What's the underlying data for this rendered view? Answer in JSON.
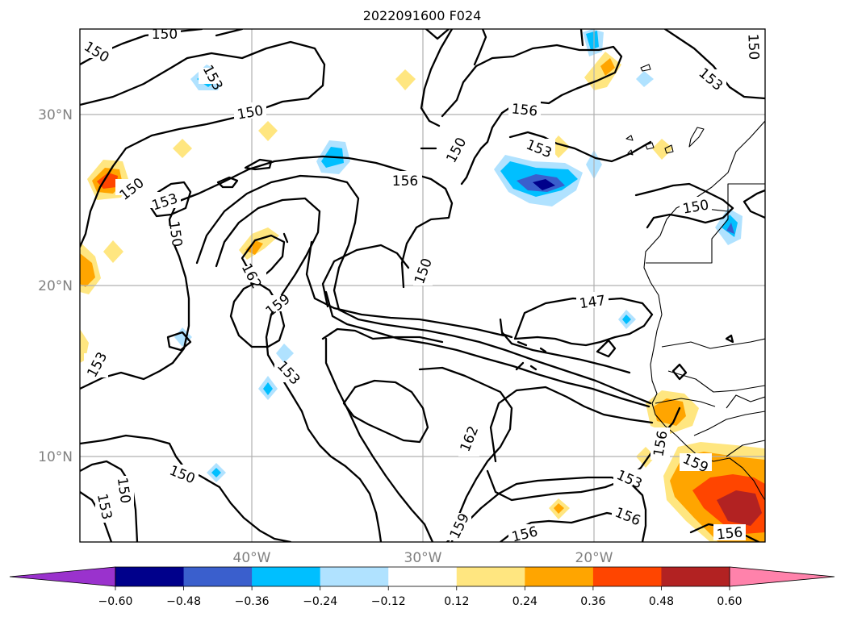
{
  "title": "2022091600 F024",
  "axes": {
    "lat_labels": [
      "30°N",
      "20°N",
      "10°N"
    ],
    "lon_labels": [
      "40°W",
      "30°W",
      "20°W"
    ],
    "lon_range": [
      -50,
      -10
    ],
    "lat_range": [
      5,
      35
    ],
    "grid": true
  },
  "contour_labels": [
    {
      "text": "150"
    },
    {
      "text": "150"
    },
    {
      "text": "153"
    },
    {
      "text": "150"
    },
    {
      "text": "150"
    },
    {
      "text": "153"
    },
    {
      "text": "150"
    },
    {
      "text": "162"
    },
    {
      "text": "159"
    },
    {
      "text": "156"
    },
    {
      "text": "150"
    },
    {
      "text": "150"
    },
    {
      "text": "156"
    },
    {
      "text": "153"
    },
    {
      "text": "153"
    },
    {
      "text": "150"
    },
    {
      "text": "150"
    },
    {
      "text": "147"
    },
    {
      "text": "153"
    },
    {
      "text": "153"
    },
    {
      "text": "150"
    },
    {
      "text": "150"
    },
    {
      "text": "153"
    },
    {
      "text": "162"
    },
    {
      "text": "159"
    },
    {
      "text": "156"
    },
    {
      "text": "153"
    },
    {
      "text": "156"
    },
    {
      "text": "156"
    },
    {
      "text": "159"
    },
    {
      "text": "156"
    }
  ],
  "colorbar": {
    "ticks": [
      "−0.60",
      "−0.48",
      "−0.36",
      "−0.24",
      "−0.12",
      "0.12",
      "0.24",
      "0.36",
      "0.48",
      "0.60"
    ],
    "colors": [
      "#9a32cd",
      "#00008b",
      "#3a5fcd",
      "#00bfff",
      "#b0e2ff",
      "#ffffff",
      "#ffe680",
      "#ffa500",
      "#ff4500",
      "#b22222",
      "#ff82ab"
    ],
    "extend": "both"
  }
}
